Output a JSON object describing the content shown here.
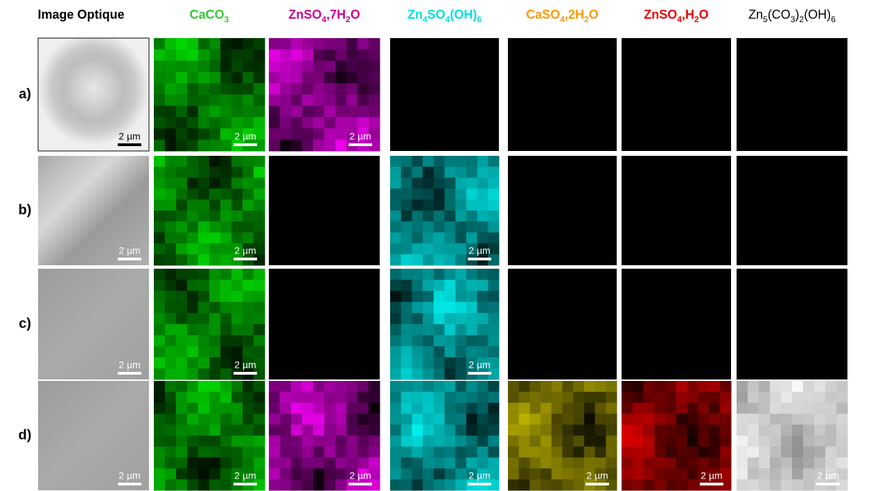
{
  "columns": [
    {
      "parts": [
        "Image Optique"
      ]
    },
    {
      "parts": [
        "CaCO",
        "3"
      ]
    },
    {
      "parts": [
        "ZnSO",
        "4",
        ",7H",
        "2",
        "O"
      ]
    },
    {
      "parts": [
        "Zn",
        "4",
        "SO",
        "4",
        "(OH)",
        "6"
      ]
    },
    {
      "parts": [
        "CaSO",
        "4",
        ",2H",
        "2",
        "O"
      ]
    },
    {
      "parts": [
        "ZnSO",
        "4",
        ",H",
        "2",
        "O"
      ]
    },
    {
      "parts": [
        "Zn",
        "5",
        "(CO",
        "3",
        ")",
        "2",
        "(OH)",
        "6"
      ]
    }
  ],
  "rows": [
    "a)",
    "b)",
    "c)",
    "d)"
  ],
  "scale_bar": "2 µm"
}
